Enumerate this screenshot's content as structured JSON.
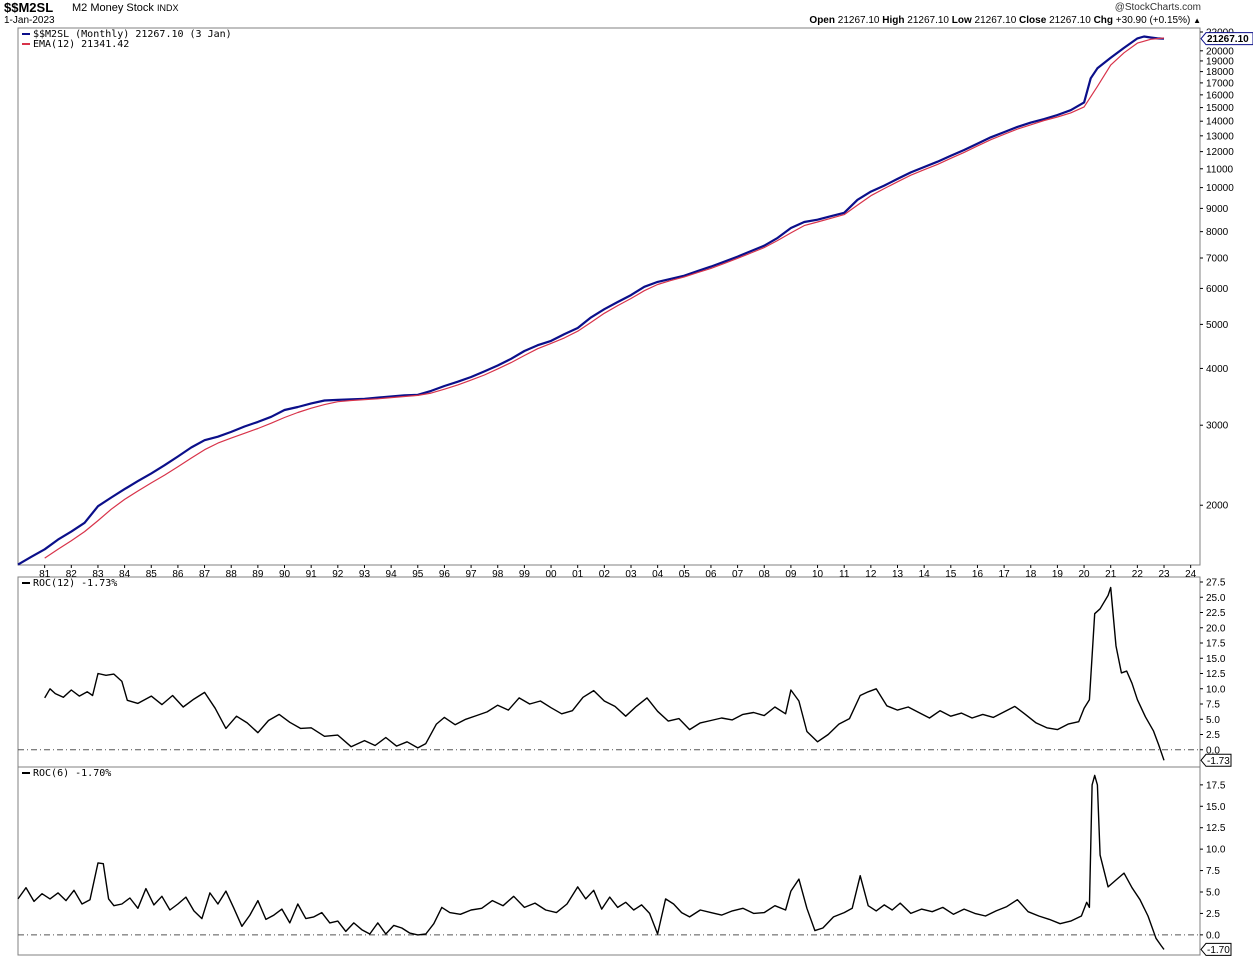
{
  "header": {
    "symbol": "$$M2SL",
    "name": "M2 Money Stock",
    "exchange": "INDX",
    "date": "1-Jan-2023",
    "watermark": "@StockCharts.com",
    "ohlc_line": {
      "open_label": "Open",
      "open": "21267.10",
      "high_label": "High",
      "high": "21267.10",
      "low_label": "Low",
      "low": "21267.10",
      "close_label": "Close",
      "close": "21267.10",
      "chg_label": "Chg",
      "chg": "+30.90 (+0.15%)"
    }
  },
  "colors": {
    "price": "#0b0f8a",
    "ema": "#d8334a",
    "roc": "#000000",
    "zero_line": "#555555",
    "panel_border": "#808080"
  },
  "chart_data": [
    {
      "type": "line",
      "title": "$$M2SL M2 Money Stock",
      "scale": "log",
      "ylim": [
        1500,
        22000
      ],
      "y_ticks": [
        "2000",
        "3000",
        "4000",
        "5000",
        "6000",
        "7000",
        "8000",
        "9000",
        "10000",
        "11000",
        "12000",
        "13000",
        "14000",
        "15000",
        "16000",
        "17000",
        "18000",
        "19000",
        "20000",
        "22000"
      ],
      "x_tick_labels": [
        "81",
        "82",
        "83",
        "84",
        "85",
        "86",
        "87",
        "88",
        "89",
        "90",
        "91",
        "92",
        "93",
        "94",
        "95",
        "96",
        "97",
        "98",
        "99",
        "00",
        "01",
        "02",
        "03",
        "04",
        "05",
        "06",
        "07",
        "08",
        "09",
        "10",
        "11",
        "12",
        "13",
        "14",
        "15",
        "16",
        "17",
        "18",
        "19",
        "20",
        "21",
        "22",
        "23",
        "24"
      ],
      "last_value_label": "21267.10",
      "legend": [
        {
          "name": "$$M2SL (Monthly) 21267.10 (3 Jan)",
          "color": "#0b0f8a"
        },
        {
          "name": "EMA(12) 21341.42",
          "color": "#d8334a"
        }
      ],
      "series": [
        {
          "name": "$$M2SL",
          "x": [
            1980.0,
            1980.5,
            1981.0,
            1981.5,
            1982.0,
            1982.5,
            1983.0,
            1983.5,
            1984.0,
            1984.5,
            1985.0,
            1985.5,
            1986.0,
            1986.5,
            1987.0,
            1987.5,
            1988.0,
            1988.5,
            1989.0,
            1989.5,
            1990.0,
            1990.5,
            1991.0,
            1991.5,
            1992.0,
            1992.5,
            1993.0,
            1993.5,
            1994.0,
            1994.5,
            1995.0,
            1995.5,
            1996.0,
            1996.5,
            1997.0,
            1997.5,
            1998.0,
            1998.5,
            1999.0,
            1999.5,
            2000.0,
            2000.5,
            2001.0,
            2001.5,
            2002.0,
            2002.5,
            2003.0,
            2003.5,
            2004.0,
            2004.5,
            2005.0,
            2005.5,
            2006.0,
            2006.5,
            2007.0,
            2007.5,
            2008.0,
            2008.5,
            2009.0,
            2009.5,
            2010.0,
            2010.5,
            2011.0,
            2011.5,
            2012.0,
            2012.5,
            2013.0,
            2013.5,
            2014.0,
            2014.5,
            2015.0,
            2015.5,
            2016.0,
            2016.5,
            2017.0,
            2017.5,
            2018.0,
            2018.5,
            2019.0,
            2019.5,
            2020.0,
            2020.25,
            2020.5,
            2021.0,
            2021.5,
            2022.0,
            2022.25,
            2022.5,
            2022.75,
            2023.0
          ],
          "values": [
            1480,
            1540,
            1600,
            1680,
            1750,
            1830,
            1990,
            2080,
            2170,
            2260,
            2350,
            2450,
            2560,
            2680,
            2780,
            2830,
            2900,
            2980,
            3050,
            3130,
            3240,
            3290,
            3350,
            3400,
            3410,
            3420,
            3430,
            3450,
            3470,
            3490,
            3500,
            3570,
            3660,
            3740,
            3830,
            3940,
            4060,
            4200,
            4370,
            4500,
            4600,
            4760,
            4910,
            5180,
            5400,
            5600,
            5800,
            6050,
            6200,
            6300,
            6400,
            6550,
            6700,
            6870,
            7050,
            7250,
            7450,
            7750,
            8150,
            8400,
            8500,
            8650,
            8800,
            9400,
            9800,
            10100,
            10450,
            10800,
            11100,
            11400,
            11750,
            12100,
            12500,
            12900,
            13250,
            13600,
            13900,
            14150,
            14450,
            14800,
            15400,
            17400,
            18300,
            19300,
            20300,
            21300,
            21500,
            21400,
            21300,
            21267
          ]
        },
        {
          "name": "EMA(12)",
          "x": [
            1981.0,
            1981.5,
            1982.0,
            1982.5,
            1983.0,
            1983.5,
            1984.0,
            1984.5,
            1985.0,
            1985.5,
            1986.0,
            1986.5,
            1987.0,
            1987.5,
            1988.0,
            1988.5,
            1989.0,
            1989.5,
            1990.0,
            1990.5,
            1991.0,
            1991.5,
            1992.0,
            1992.5,
            1993.0,
            1993.5,
            1994.0,
            1994.5,
            1995.0,
            1995.5,
            1996.0,
            1996.5,
            1997.0,
            1997.5,
            1998.0,
            1998.5,
            1999.0,
            1999.5,
            2000.0,
            2000.5,
            2001.0,
            2001.5,
            2002.0,
            2002.5,
            2003.0,
            2003.5,
            2004.0,
            2004.5,
            2005.0,
            2005.5,
            2006.0,
            2006.5,
            2007.0,
            2007.5,
            2008.0,
            2008.5,
            2009.0,
            2009.5,
            2010.0,
            2010.5,
            2011.0,
            2011.5,
            2012.0,
            2012.5,
            2013.0,
            2013.5,
            2014.0,
            2014.5,
            2015.0,
            2015.5,
            2016.0,
            2016.5,
            2017.0,
            2017.5,
            2018.0,
            2018.5,
            2019.0,
            2019.5,
            2020.0,
            2020.5,
            2021.0,
            2021.5,
            2022.0,
            2022.5,
            2023.0
          ],
          "values": [
            1530,
            1600,
            1670,
            1750,
            1850,
            1960,
            2060,
            2150,
            2240,
            2330,
            2430,
            2540,
            2650,
            2740,
            2810,
            2880,
            2950,
            3030,
            3120,
            3200,
            3270,
            3330,
            3380,
            3400,
            3415,
            3430,
            3450,
            3470,
            3490,
            3530,
            3600,
            3680,
            3770,
            3870,
            3990,
            4120,
            4270,
            4420,
            4540,
            4670,
            4830,
            5050,
            5290,
            5500,
            5700,
            5930,
            6120,
            6250,
            6360,
            6500,
            6640,
            6810,
            6990,
            7180,
            7380,
            7650,
            7950,
            8250,
            8400,
            8560,
            8720,
            9150,
            9600,
            9950,
            10300,
            10650,
            10950,
            11250,
            11600,
            11950,
            12350,
            12750,
            13100,
            13450,
            13750,
            14050,
            14300,
            14600,
            15050,
            16700,
            18600,
            19800,
            20800,
            21200,
            21341
          ]
        }
      ]
    },
    {
      "type": "line",
      "title": "ROC(12)",
      "ylim": [
        -2.5,
        27.5
      ],
      "y_ticks": [
        "0.0",
        "2.5",
        "5.0",
        "7.5",
        "10.0",
        "12.5",
        "15.0",
        "17.5",
        "20.0",
        "22.5",
        "25.0",
        "27.5"
      ],
      "last_value_label": "-1.73",
      "legend": [
        {
          "name": "ROC(12) -1.73%",
          "color": "#000000"
        }
      ],
      "series": [
        {
          "name": "ROC(12)",
          "x": [
            1981.0,
            1981.2,
            1981.4,
            1981.7,
            1982.0,
            1982.3,
            1982.6,
            1982.8,
            1983.0,
            1983.3,
            1983.6,
            1983.9,
            1984.1,
            1984.5,
            1985.0,
            1985.4,
            1985.8,
            1986.2,
            1986.6,
            1987.0,
            1987.4,
            1987.8,
            1988.2,
            1988.6,
            1989.0,
            1989.4,
            1989.8,
            1990.2,
            1990.6,
            1991.0,
            1991.5,
            1992.0,
            1992.5,
            1993.0,
            1993.4,
            1993.8,
            1994.2,
            1994.6,
            1995.0,
            1995.3,
            1995.7,
            1996.0,
            1996.4,
            1996.8,
            1997.2,
            1997.6,
            1998.0,
            1998.4,
            1998.8,
            1999.2,
            1999.6,
            2000.0,
            2000.4,
            2000.8,
            2001.2,
            2001.6,
            2002.0,
            2002.4,
            2002.8,
            2003.2,
            2003.6,
            2004.0,
            2004.4,
            2004.8,
            2005.2,
            2005.6,
            2006.0,
            2006.4,
            2006.8,
            2007.2,
            2007.6,
            2008.0,
            2008.4,
            2008.8,
            2009.0,
            2009.3,
            2009.6,
            2010.0,
            2010.4,
            2010.8,
            2011.2,
            2011.6,
            2011.9,
            2012.2,
            2012.6,
            2013.0,
            2013.4,
            2013.8,
            2014.2,
            2014.6,
            2015.0,
            2015.4,
            2015.8,
            2016.2,
            2016.6,
            2017.0,
            2017.4,
            2017.8,
            2018.2,
            2018.6,
            2019.0,
            2019.4,
            2019.8,
            2020.0,
            2020.2,
            2020.4,
            2020.6,
            2020.9,
            2021.0,
            2021.2,
            2021.4,
            2021.6,
            2021.8,
            2022.0,
            2022.3,
            2022.6,
            2022.8,
            2023.0
          ],
          "values": [
            8.5,
            10.0,
            9.2,
            8.6,
            9.8,
            8.8,
            9.5,
            8.9,
            12.5,
            12.2,
            12.4,
            11.2,
            8.1,
            7.6,
            8.8,
            7.4,
            8.9,
            7.0,
            8.3,
            9.4,
            6.8,
            3.5,
            5.5,
            4.4,
            2.8,
            4.8,
            5.8,
            4.5,
            3.5,
            3.6,
            2.2,
            2.4,
            0.5,
            1.5,
            0.7,
            2.0,
            0.6,
            1.3,
            0.3,
            1.0,
            4.2,
            5.3,
            4.1,
            5.0,
            5.6,
            6.2,
            7.3,
            6.5,
            8.5,
            7.5,
            8.0,
            6.9,
            5.9,
            6.4,
            8.6,
            9.7,
            8.0,
            7.1,
            5.5,
            7.1,
            8.5,
            6.3,
            4.7,
            5.1,
            3.3,
            4.4,
            4.8,
            5.2,
            4.9,
            5.8,
            6.1,
            5.6,
            7.0,
            5.9,
            9.8,
            8.0,
            3.0,
            1.3,
            2.5,
            4.2,
            5.1,
            8.9,
            9.5,
            10.0,
            7.2,
            6.5,
            7.0,
            6.1,
            5.2,
            6.4,
            5.5,
            6.0,
            5.2,
            5.8,
            5.3,
            6.2,
            7.1,
            5.8,
            4.4,
            3.6,
            3.3,
            4.2,
            4.6,
            6.8,
            8.2,
            22.3,
            23.1,
            25.3,
            26.6,
            17.0,
            12.6,
            12.9,
            10.9,
            8.2,
            5.4,
            3.1,
            0.8,
            -1.73
          ]
        }
      ]
    },
    {
      "type": "line",
      "title": "ROC(6)",
      "ylim": [
        -2.0,
        19.0
      ],
      "y_ticks": [
        "0.0",
        "2.5",
        "5.0",
        "7.5",
        "10.0",
        "12.5",
        "15.0",
        "17.5"
      ],
      "last_value_label": "-1.70",
      "legend": [
        {
          "name": "ROC(6) -1.70%",
          "color": "#000000"
        }
      ],
      "series": [
        {
          "name": "ROC(6)",
          "x": [
            1980.0,
            1980.3,
            1980.6,
            1980.9,
            1981.2,
            1981.5,
            1981.8,
            1982.1,
            1982.4,
            1982.7,
            1983.0,
            1983.2,
            1983.4,
            1983.6,
            1983.9,
            1984.2,
            1984.5,
            1984.8,
            1985.1,
            1985.4,
            1985.7,
            1986.0,
            1986.3,
            1986.6,
            1986.9,
            1987.2,
            1987.5,
            1987.8,
            1988.1,
            1988.4,
            1988.7,
            1989.0,
            1989.3,
            1989.6,
            1989.9,
            1990.2,
            1990.5,
            1990.8,
            1991.1,
            1991.4,
            1991.7,
            1992.0,
            1992.3,
            1992.6,
            1992.9,
            1993.2,
            1993.5,
            1993.8,
            1994.1,
            1994.4,
            1994.7,
            1995.0,
            1995.3,
            1995.6,
            1995.9,
            1996.2,
            1996.6,
            1997.0,
            1997.4,
            1997.8,
            1998.2,
            1998.6,
            1999.0,
            1999.4,
            1999.8,
            2000.2,
            2000.6,
            2001.0,
            2001.3,
            2001.6,
            2001.9,
            2002.2,
            2002.5,
            2002.8,
            2003.1,
            2003.4,
            2003.7,
            2004.0,
            2004.3,
            2004.6,
            2004.9,
            2005.2,
            2005.6,
            2006.0,
            2006.4,
            2006.8,
            2007.2,
            2007.6,
            2008.0,
            2008.4,
            2008.8,
            2009.0,
            2009.3,
            2009.6,
            2009.9,
            2010.2,
            2010.6,
            2011.0,
            2011.3,
            2011.6,
            2011.9,
            2012.2,
            2012.5,
            2012.8,
            2013.1,
            2013.5,
            2013.9,
            2014.3,
            2014.7,
            2015.1,
            2015.5,
            2015.9,
            2016.3,
            2016.7,
            2017.1,
            2017.5,
            2017.9,
            2018.3,
            2018.7,
            2019.1,
            2019.5,
            2019.9,
            2020.1,
            2020.2,
            2020.3,
            2020.4,
            2020.5,
            2020.6,
            2020.9,
            2021.2,
            2021.5,
            2021.8,
            2022.1,
            2022.4,
            2022.7,
            2022.9,
            2023.0
          ],
          "values": [
            4.2,
            5.5,
            3.9,
            4.8,
            4.2,
            4.9,
            4.0,
            5.2,
            3.6,
            4.1,
            8.4,
            8.3,
            4.2,
            3.4,
            3.6,
            4.3,
            3.1,
            5.4,
            3.5,
            4.5,
            2.9,
            3.6,
            4.4,
            2.8,
            1.9,
            4.9,
            3.6,
            5.1,
            3.1,
            1.0,
            2.3,
            4.0,
            1.8,
            2.3,
            3.0,
            1.4,
            3.6,
            1.9,
            2.1,
            2.6,
            1.4,
            1.6,
            0.4,
            1.4,
            0.6,
            0.1,
            1.4,
            0.1,
            1.1,
            0.8,
            0.2,
            0.0,
            0.1,
            1.3,
            3.2,
            2.6,
            2.4,
            2.9,
            3.1,
            4.0,
            3.4,
            4.5,
            3.2,
            3.7,
            2.9,
            2.6,
            3.6,
            5.6,
            4.2,
            5.2,
            3.0,
            4.4,
            3.2,
            3.8,
            2.9,
            3.5,
            2.5,
            0.1,
            4.2,
            3.6,
            2.6,
            2.1,
            2.9,
            2.6,
            2.3,
            2.8,
            3.1,
            2.5,
            2.6,
            3.4,
            2.9,
            5.1,
            6.5,
            3.1,
            0.5,
            0.8,
            2.1,
            2.6,
            3.1,
            6.9,
            3.4,
            2.8,
            3.5,
            2.9,
            3.7,
            2.5,
            3.0,
            2.7,
            3.2,
            2.4,
            3.0,
            2.5,
            2.2,
            2.8,
            3.3,
            4.1,
            2.7,
            2.2,
            1.8,
            1.3,
            1.6,
            2.2,
            3.8,
            3.2,
            17.5,
            18.6,
            17.5,
            9.3,
            5.6,
            6.4,
            7.2,
            5.5,
            4.1,
            2.2,
            -0.4,
            -1.3,
            -1.7
          ]
        }
      ]
    }
  ]
}
